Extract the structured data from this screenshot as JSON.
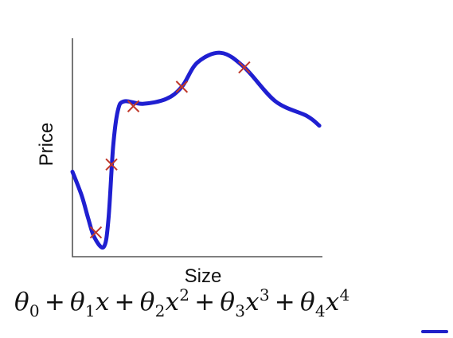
{
  "chart_data": {
    "type": "scatter",
    "xlabel": "Size",
    "ylabel": "Price",
    "points": [
      {
        "x": 1.5,
        "y": 1.0
      },
      {
        "x": 2.5,
        "y": 3.8
      },
      {
        "x": 3.9,
        "y": 6.2
      },
      {
        "x": 7.0,
        "y": 7.0
      },
      {
        "x": 11.0,
        "y": 7.8
      }
    ],
    "fit_curve": [
      [
        0,
        3.5
      ],
      [
        0.6,
        2.5
      ],
      [
        1.0,
        1.6
      ],
      [
        1.4,
        0.8
      ],
      [
        2.0,
        0.4
      ],
      [
        2.3,
        1.5
      ],
      [
        2.6,
        4.5
      ],
      [
        2.9,
        6.0
      ],
      [
        3.3,
        6.4
      ],
      [
        4.5,
        6.3
      ],
      [
        6.0,
        6.5
      ],
      [
        7.0,
        7.0
      ],
      [
        8.0,
        8.0
      ],
      [
        9.5,
        8.4
      ],
      [
        11.0,
        7.8
      ],
      [
        13.0,
        6.4
      ],
      [
        15.0,
        5.8
      ],
      [
        15.8,
        5.4
      ]
    ],
    "xlim": [
      0,
      16
    ],
    "ylim": [
      0,
      9
    ],
    "grid": false
  },
  "colors": {
    "curve": "#1f1fd1",
    "marker": "#c0392b",
    "axis": "#555555"
  },
  "equation": {
    "t0": "θ",
    "s0": "0",
    "op1": "+",
    "t1": "θ",
    "s1": "1",
    "v1": "x",
    "op2": "+",
    "t2": "θ",
    "s2": "2",
    "v2": "x",
    "p2": "2",
    "op3": "+",
    "t3": "θ",
    "s3": "3",
    "v3": "x",
    "p3": "3",
    "op4": "+",
    "t4": "θ",
    "s4": "4",
    "v4": "x",
    "p4": "4"
  }
}
